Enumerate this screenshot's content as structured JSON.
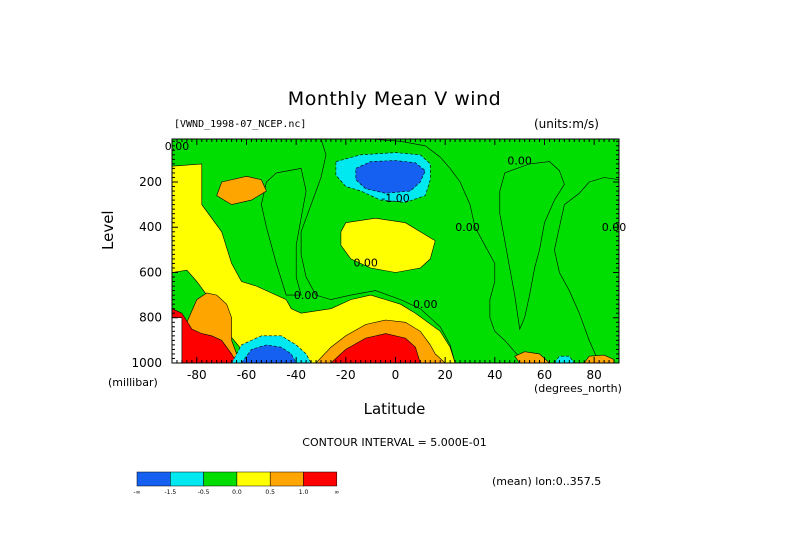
{
  "chart_data": {
    "type": "heatmap",
    "title": "Monthly Mean V wind",
    "dataset_label": "[VWND_1998-07_NCEP.nc]",
    "units_label": "(units:m/s)",
    "xlabel": "Latitude",
    "x_unit": "(degrees_north)",
    "ylabel": "Level",
    "y_unit": "(millibar)",
    "xlim": [
      -90,
      90
    ],
    "ylim": [
      1000,
      10
    ],
    "x_ticks": [
      -80,
      -60,
      -40,
      -20,
      0,
      20,
      40,
      60,
      80
    ],
    "y_ticks": [
      200,
      400,
      600,
      800,
      1000
    ],
    "contour_interval_text": "CONTOUR INTERVAL = 5.000E-01",
    "footer_text": "(mean) lon:0..357.5",
    "contour_labels": [
      {
        "text": "0.00",
        "x": -88,
        "y": 40
      },
      {
        "text": "0.00",
        "x": 50,
        "y": 105
      },
      {
        "text": "-1.00",
        "x": 0,
        "y": 270
      },
      {
        "text": "0.00",
        "x": 29,
        "y": 400
      },
      {
        "text": "0.00",
        "x": 88,
        "y": 400
      },
      {
        "text": "0.00",
        "x": -36,
        "y": 700
      },
      {
        "text": "0.00",
        "x": -12,
        "y": 555
      },
      {
        "text": "0.00",
        "x": 12,
        "y": 740
      }
    ],
    "legend": {
      "bins": [
        "-1.5",
        "-0.5",
        "0.0",
        "0.5",
        "1.0"
      ],
      "colors": [
        "#1560f0",
        "#00e8f0",
        "#00dd00",
        "#ffff00",
        "#ffa500",
        "#ff0000"
      ],
      "ends": [
        "-∞",
        "∞"
      ]
    },
    "colors": {
      "background": "#00dd00",
      "blue": "#1560f0",
      "cyan": "#00e8f0",
      "green": "#00dd00",
      "yellow": "#ffff00",
      "orange": "#ffa500",
      "red": "#ff0000",
      "white": "#ffffff"
    },
    "regions": [
      {
        "level": "yellow",
        "pts": [
          [
            -90,
            1000
          ],
          [
            -90,
            130
          ],
          [
            -78,
            120
          ],
          [
            -78,
            300
          ],
          [
            -70,
            420
          ],
          [
            -66,
            560
          ],
          [
            -62,
            640
          ],
          [
            -56,
            660
          ],
          [
            -50,
            690
          ],
          [
            -44,
            720
          ],
          [
            -42,
            760
          ],
          [
            -38,
            780
          ],
          [
            -26,
            760
          ],
          [
            -18,
            720
          ],
          [
            -10,
            700
          ],
          [
            -4,
            720
          ],
          [
            2,
            740
          ],
          [
            8,
            780
          ],
          [
            18,
            860
          ],
          [
            22,
            930
          ],
          [
            24,
            1000
          ]
        ]
      },
      {
        "level": "green",
        "pts": [
          [
            -90,
            600
          ],
          [
            -84,
            590
          ],
          [
            -80,
            640
          ],
          [
            -76,
            700
          ],
          [
            -72,
            730
          ],
          [
            -68,
            860
          ],
          [
            -62,
            940
          ],
          [
            -60,
            1000
          ],
          [
            -90,
            1000
          ]
        ]
      },
      {
        "level": "green",
        "pts": [
          [
            -48,
            160
          ],
          [
            -38,
            140
          ],
          [
            -36,
            240
          ],
          [
            -38,
            360
          ],
          [
            -40,
            480
          ],
          [
            -40,
            620
          ],
          [
            -38,
            700
          ],
          [
            -44,
            700
          ],
          [
            -48,
            560
          ],
          [
            -52,
            400
          ],
          [
            -54,
            300
          ],
          [
            -52,
            200
          ]
        ]
      },
      {
        "level": "green",
        "pts": [
          [
            -30,
            10
          ],
          [
            -10,
            10
          ],
          [
            2,
            20
          ],
          [
            12,
            40
          ],
          [
            18,
            90
          ],
          [
            22,
            140
          ],
          [
            26,
            200
          ],
          [
            30,
            300
          ],
          [
            32,
            400
          ],
          [
            36,
            480
          ],
          [
            40,
            560
          ],
          [
            40,
            640
          ],
          [
            38,
            720
          ],
          [
            38,
            800
          ],
          [
            40,
            860
          ],
          [
            44,
            900
          ],
          [
            52,
            1000
          ],
          [
            24,
            1000
          ],
          [
            22,
            920
          ],
          [
            18,
            840
          ],
          [
            10,
            760
          ],
          [
            2,
            720
          ],
          [
            -8,
            680
          ],
          [
            -18,
            700
          ],
          [
            -26,
            720
          ],
          [
            -32,
            700
          ],
          [
            -36,
            620
          ],
          [
            -38,
            520
          ],
          [
            -38,
            420
          ],
          [
            -34,
            300
          ],
          [
            -30,
            180
          ],
          [
            -28,
            80
          ]
        ]
      },
      {
        "level": "yellow",
        "pts": [
          [
            -20,
            380
          ],
          [
            -8,
            360
          ],
          [
            4,
            380
          ],
          [
            10,
            420
          ],
          [
            16,
            460
          ],
          [
            14,
            540
          ],
          [
            10,
            580
          ],
          [
            0,
            600
          ],
          [
            -10,
            580
          ],
          [
            -18,
            540
          ],
          [
            -22,
            480
          ],
          [
            -22,
            420
          ]
        ]
      },
      {
        "level": "green",
        "pts": [
          [
            44,
            160
          ],
          [
            54,
            120
          ],
          [
            62,
            110
          ],
          [
            66,
            150
          ],
          [
            68,
            210
          ],
          [
            64,
            280
          ],
          [
            60,
            380
          ],
          [
            58,
            500
          ],
          [
            56,
            580
          ],
          [
            54,
            700
          ],
          [
            52,
            800
          ],
          [
            50,
            850
          ],
          [
            48,
            700
          ],
          [
            46,
            580
          ],
          [
            44,
            460
          ],
          [
            42,
            340
          ],
          [
            42,
            240
          ]
        ]
      },
      {
        "level": "green",
        "pts": [
          [
            68,
            300
          ],
          [
            74,
            250
          ],
          [
            78,
            200
          ],
          [
            84,
            180
          ],
          [
            90,
            190
          ],
          [
            90,
            1000
          ],
          [
            82,
            1000
          ],
          [
            78,
            900
          ],
          [
            74,
            780
          ],
          [
            70,
            680
          ],
          [
            66,
            600
          ],
          [
            64,
            500
          ],
          [
            66,
            400
          ]
        ]
      },
      {
        "level": "orange",
        "pts": [
          [
            -70,
            200
          ],
          [
            -60,
            175
          ],
          [
            -54,
            190
          ],
          [
            -52,
            240
          ],
          [
            -58,
            280
          ],
          [
            -66,
            300
          ],
          [
            -72,
            260
          ]
        ]
      },
      {
        "level": "cyan",
        "pts": [
          [
            -24,
            110
          ],
          [
            -14,
            80
          ],
          [
            0,
            70
          ],
          [
            10,
            80
          ],
          [
            14,
            120
          ],
          [
            14,
            190
          ],
          [
            12,
            260
          ],
          [
            4,
            290
          ],
          [
            -6,
            280
          ],
          [
            -14,
            240
          ],
          [
            -20,
            220
          ],
          [
            -24,
            170
          ]
        ]
      },
      {
        "level": "blue",
        "pts": [
          [
            -16,
            140
          ],
          [
            -10,
            110
          ],
          [
            0,
            105
          ],
          [
            8,
            115
          ],
          [
            12,
            150
          ],
          [
            10,
            200
          ],
          [
            6,
            240
          ],
          [
            -4,
            250
          ],
          [
            -12,
            230
          ],
          [
            -16,
            190
          ]
        ]
      },
      {
        "level": "orange",
        "pts": [
          [
            -82,
            1000
          ],
          [
            -84,
            820
          ],
          [
            -80,
            720
          ],
          [
            -76,
            690
          ],
          [
            -72,
            700
          ],
          [
            -68,
            740
          ],
          [
            -66,
            800
          ],
          [
            -66,
            900
          ],
          [
            -64,
            960
          ],
          [
            -62,
            1000
          ]
        ]
      },
      {
        "level": "red",
        "pts": [
          [
            -90,
            760
          ],
          [
            -86,
            780
          ],
          [
            -82,
            850
          ],
          [
            -78,
            870
          ],
          [
            -74,
            880
          ],
          [
            -70,
            900
          ],
          [
            -66,
            960
          ],
          [
            -64,
            1000
          ],
          [
            -90,
            1000
          ]
        ]
      },
      {
        "level": "white",
        "pts": [
          [
            -90,
            800
          ],
          [
            -86,
            800
          ],
          [
            -86,
            1000
          ],
          [
            -90,
            1000
          ]
        ]
      },
      {
        "level": "cyan",
        "pts": [
          [
            -66,
            1000
          ],
          [
            -62,
            920
          ],
          [
            -54,
            880
          ],
          [
            -46,
            880
          ],
          [
            -40,
            920
          ],
          [
            -36,
            960
          ],
          [
            -34,
            1000
          ]
        ]
      },
      {
        "level": "blue",
        "pts": [
          [
            -62,
            1000
          ],
          [
            -58,
            940
          ],
          [
            -52,
            920
          ],
          [
            -46,
            930
          ],
          [
            -42,
            960
          ],
          [
            -40,
            1000
          ]
        ]
      },
      {
        "level": "orange",
        "pts": [
          [
            -32,
            1000
          ],
          [
            -26,
            930
          ],
          [
            -20,
            880
          ],
          [
            -12,
            830
          ],
          [
            -4,
            810
          ],
          [
            4,
            820
          ],
          [
            10,
            860
          ],
          [
            14,
            920
          ],
          [
            16,
            960
          ],
          [
            20,
            1000
          ]
        ]
      },
      {
        "level": "red",
        "pts": [
          [
            -26,
            1000
          ],
          [
            -20,
            940
          ],
          [
            -12,
            890
          ],
          [
            -4,
            870
          ],
          [
            4,
            890
          ],
          [
            8,
            930
          ],
          [
            10,
            1000
          ]
        ]
      },
      {
        "level": "orange",
        "pts": [
          [
            50,
            1000
          ],
          [
            48,
            970
          ],
          [
            52,
            950
          ],
          [
            58,
            960
          ],
          [
            62,
            1000
          ]
        ]
      },
      {
        "level": "cyan",
        "pts": [
          [
            64,
            1000
          ],
          [
            66,
            970
          ],
          [
            70,
            970
          ],
          [
            72,
            1000
          ]
        ]
      },
      {
        "level": "orange",
        "pts": [
          [
            76,
            1000
          ],
          [
            78,
            970
          ],
          [
            84,
            965
          ],
          [
            88,
            985
          ],
          [
            88,
            1000
          ]
        ]
      }
    ]
  }
}
